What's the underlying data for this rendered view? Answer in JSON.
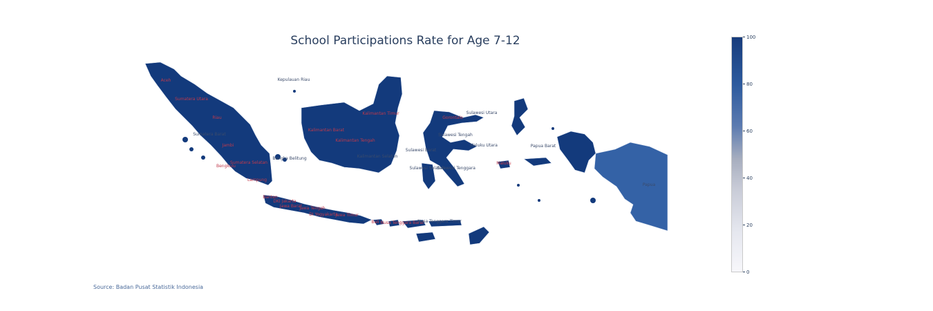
{
  "title": "School Participations Rate for Age 7-12",
  "source": "Source: Badan Pusat Statistik Indonesia",
  "colorbar": {
    "ticks": [
      "100",
      "80",
      "60",
      "40",
      "20",
      "0"
    ],
    "min": 0,
    "max": 100,
    "colorscale": [
      "#f7f7fb",
      "#e4e6ee",
      "#c7cad6",
      "#a7aebf",
      "#5c7bb0",
      "#2c5a9e",
      "#173c7c"
    ]
  },
  "colors": {
    "province_fill": "#133a7c",
    "papua_fill": "#3462a6",
    "border": "#dfe6f2"
  },
  "provinces": [
    {
      "name": "Aceh",
      "label_color": "red"
    },
    {
      "name": "Sumatera Utara",
      "label_color": "red"
    },
    {
      "name": "Riau",
      "label_color": "red"
    },
    {
      "name": "Sumatera Barat",
      "label_color": "dark"
    },
    {
      "name": "Jambi",
      "label_color": "red"
    },
    {
      "name": "Sumatera Selatan",
      "label_color": "red"
    },
    {
      "name": "Bengkulu",
      "label_color": "red"
    },
    {
      "name": "Lampung",
      "label_color": "red"
    },
    {
      "name": "Kepulauan Riau",
      "label_color": "dark"
    },
    {
      "name": "Bangka Belitung",
      "label_color": "dark"
    },
    {
      "name": "Kalimantan Barat",
      "label_color": "red"
    },
    {
      "name": "Kalimantan Tengah",
      "label_color": "red"
    },
    {
      "name": "Kalimantan Timur",
      "label_color": "red"
    },
    {
      "name": "Kalimantan Selatan",
      "label_color": "dark"
    },
    {
      "name": "Sulawesi Utara",
      "label_color": "dark"
    },
    {
      "name": "Gorontalo",
      "label_color": "red"
    },
    {
      "name": "Sulawesi Tengah",
      "label_color": "dark"
    },
    {
      "name": "Sulawesi Barat",
      "label_color": "dark"
    },
    {
      "name": "Sulawesi Selatan",
      "label_color": "dark"
    },
    {
      "name": "Sulawesi Tenggara",
      "label_color": "dark"
    },
    {
      "name": "Maluku Utara",
      "label_color": "dark"
    },
    {
      "name": "Maluku",
      "label_color": "red"
    },
    {
      "name": "Papua Barat",
      "label_color": "dark"
    },
    {
      "name": "Papua",
      "label_color": "dark"
    },
    {
      "name": "Banten",
      "label_color": "red"
    },
    {
      "name": "DKI Jakarta",
      "label_color": "red"
    },
    {
      "name": "Jawa Barat",
      "label_color": "red"
    },
    {
      "name": "Jawa Tengah",
      "label_color": "red"
    },
    {
      "name": "DI Yogyakarta",
      "label_color": "red"
    },
    {
      "name": "Jawa Timur",
      "label_color": "red"
    },
    {
      "name": "Bali",
      "label_color": "red"
    },
    {
      "name": "Nusa Tenggara Barat",
      "label_color": "red"
    },
    {
      "name": "Nusa Tenggara Timur",
      "label_color": "dark"
    }
  ]
}
